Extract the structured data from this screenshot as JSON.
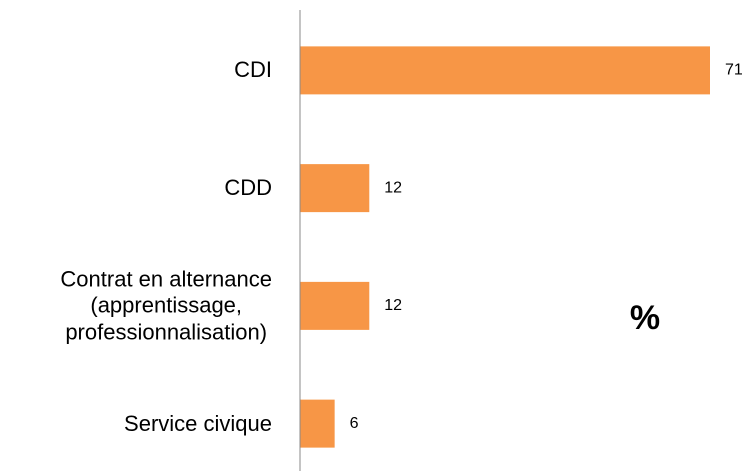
{
  "chart_data": {
    "type": "bar",
    "orientation": "horizontal",
    "categories": [
      "CDI",
      "CDD",
      "Contrat en alternance\n(apprentissage,\nprofessionnalisation)",
      "Service civique"
    ],
    "values": [
      71,
      12,
      12,
      6
    ],
    "color": "#f79646",
    "annotation": "%"
  }
}
